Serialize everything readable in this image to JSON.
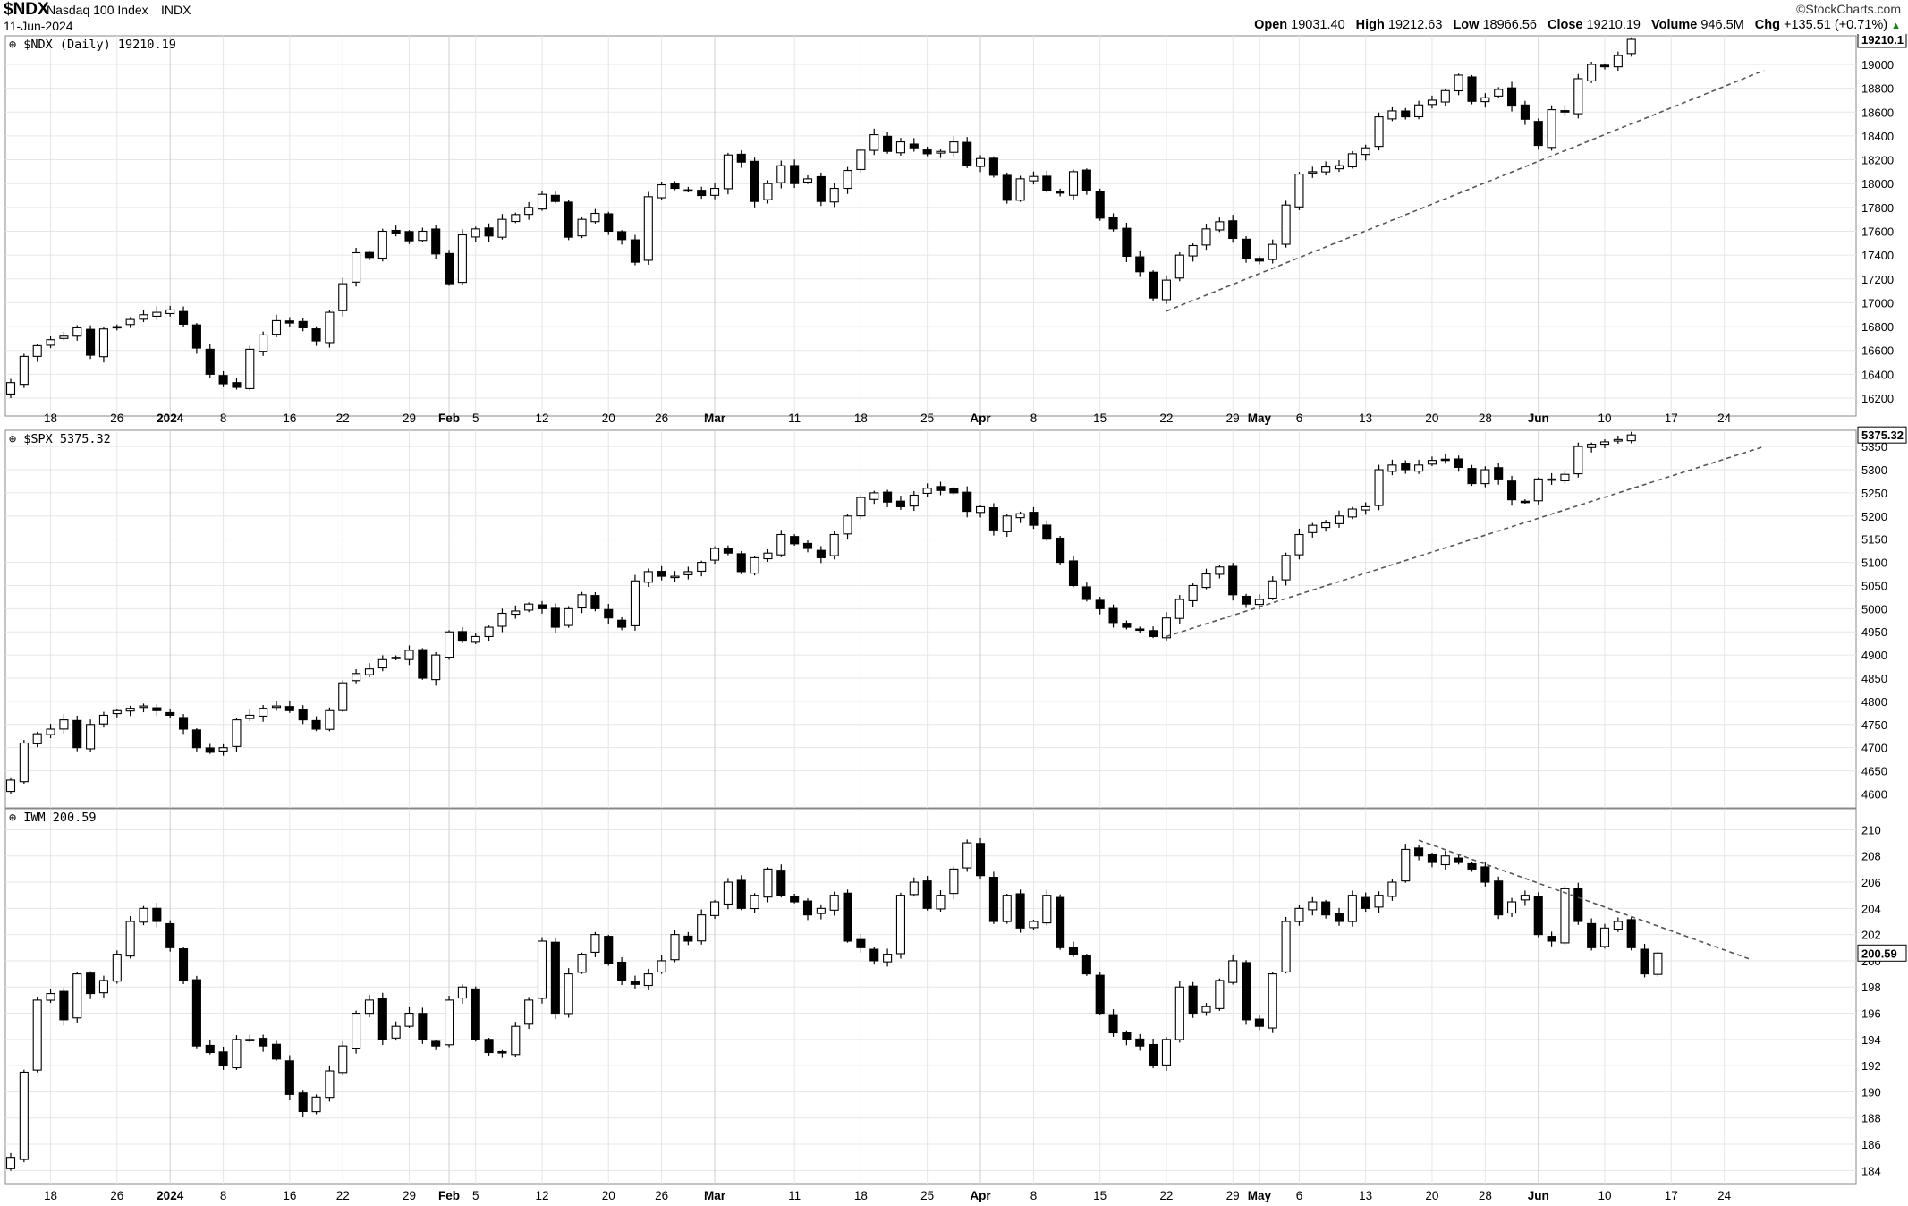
{
  "header": {
    "symbol": "$NDX",
    "name": "Nasdaq 100 Index",
    "exchange": "INDX",
    "date": "11-Jun-2024",
    "brand": "©StockCharts.com",
    "open_label": "Open",
    "open": "19031.40",
    "high_label": "High",
    "high": "19212.63",
    "low_label": "Low",
    "low": "18966.56",
    "close_label": "Close",
    "close": "19210.19",
    "volume_label": "Volume",
    "volume": "946.5M",
    "chg_label": "Chg",
    "chg": "+135.51 (+0.71%)",
    "chg_arrow": "▲"
  },
  "x_axis": {
    "labels": [
      {
        "d": 3,
        "t": "18"
      },
      {
        "d": 8,
        "t": "26"
      },
      {
        "d": 12,
        "t": "2024",
        "bold": true
      },
      {
        "d": 16,
        "t": "8"
      },
      {
        "d": 21,
        "t": "16"
      },
      {
        "d": 25,
        "t": "22"
      },
      {
        "d": 30,
        "t": "29"
      },
      {
        "d": 33,
        "t": "Feb",
        "bold": true
      },
      {
        "d": 35,
        "t": "5"
      },
      {
        "d": 40,
        "t": "12"
      },
      {
        "d": 45,
        "t": "20"
      },
      {
        "d": 49,
        "t": "26"
      },
      {
        "d": 53,
        "t": "Mar",
        "bold": true
      },
      {
        "d": 59,
        "t": "11"
      },
      {
        "d": 64,
        "t": "18"
      },
      {
        "d": 69,
        "t": "25"
      },
      {
        "d": 73,
        "t": "Apr",
        "bold": true
      },
      {
        "d": 77,
        "t": "8"
      },
      {
        "d": 82,
        "t": "15"
      },
      {
        "d": 87,
        "t": "22"
      },
      {
        "d": 92,
        "t": "29"
      },
      {
        "d": 94,
        "t": "May",
        "bold": true
      },
      {
        "d": 97,
        "t": "6"
      },
      {
        "d": 102,
        "t": "13"
      },
      {
        "d": 107,
        "t": "20"
      },
      {
        "d": 111,
        "t": "28"
      },
      {
        "d": 115,
        "t": "Jun",
        "bold": true
      },
      {
        "d": 120,
        "t": "10"
      },
      {
        "d": 125,
        "t": "17"
      },
      {
        "d": 129,
        "t": "24"
      }
    ]
  },
  "chart_data": [
    {
      "type": "candlestick",
      "label": "$NDX (Daily) 19210.19",
      "last_value": "19210.1",
      "y_ticks": [
        16200,
        16400,
        16600,
        16800,
        17000,
        17200,
        17400,
        17600,
        17800,
        18000,
        18200,
        18400,
        18600,
        18800,
        19000
      ],
      "ylim": [
        16050,
        19240
      ],
      "trendline": {
        "from": [
          87,
          16930
        ],
        "to": [
          132,
          18950
        ]
      },
      "closes": [
        16330,
        16550,
        16640,
        16690,
        16720,
        16790,
        16560,
        16780,
        16800,
        16860,
        16900,
        16920,
        16940,
        16820,
        16620,
        16400,
        16320,
        16290,
        16610,
        16730,
        16850,
        16830,
        16790,
        16680,
        16920,
        17160,
        17420,
        17380,
        17600,
        17580,
        17520,
        17600,
        17410,
        17160,
        17570,
        17620,
        17560,
        17700,
        17740,
        17800,
        17910,
        17850,
        17550,
        17700,
        17750,
        17600,
        17530,
        17340,
        17890,
        17990,
        17960,
        17940,
        17900,
        17960,
        18240,
        18180,
        17850,
        18000,
        18150,
        18000,
        18040,
        17850,
        17960,
        18110,
        18280,
        18410,
        18270,
        18350,
        18300,
        18250,
        18270,
        18350,
        18150,
        18210,
        18070,
        17860,
        18040,
        18060,
        17940,
        17920,
        18100,
        17940,
        17710,
        17620,
        17390,
        17260,
        17040,
        17190,
        17400,
        17480,
        17620,
        17680,
        17540,
        17370,
        17350,
        17490,
        17820,
        18080,
        18100,
        18140,
        18150,
        18250,
        18300,
        18560,
        18610,
        18560,
        18660,
        18700,
        18780,
        18910,
        18690,
        18720,
        18790,
        18650,
        18540,
        18320,
        18620,
        18600,
        18880,
        19000,
        18980,
        19074,
        19210
      ]
    },
    {
      "type": "candlestick",
      "label": "$SPX 5375.32",
      "last_value": "5375.32",
      "y_ticks": [
        4600,
        4650,
        4700,
        4750,
        4800,
        4850,
        4900,
        4950,
        5000,
        5050,
        5100,
        5150,
        5200,
        5250,
        5300,
        5350
      ],
      "ylim": [
        4570,
        5385
      ],
      "trendline": {
        "from": [
          87,
          4940
        ],
        "to": [
          132,
          5350
        ]
      },
      "closes": [
        4630,
        4710,
        4730,
        4740,
        4760,
        4700,
        4750,
        4770,
        4780,
        4785,
        4790,
        4780,
        4770,
        4740,
        4700,
        4690,
        4700,
        4760,
        4770,
        4785,
        4790,
        4780,
        4760,
        4740,
        4780,
        4840,
        4860,
        4870,
        4890,
        4895,
        4910,
        4850,
        4900,
        4950,
        4930,
        4940,
        4960,
        4990,
        4995,
        5010,
        5000,
        4960,
        5000,
        5030,
        5000,
        4980,
        4960,
        5060,
        5080,
        5070,
        5070,
        5080,
        5100,
        5130,
        5120,
        5080,
        5110,
        5120,
        5160,
        5140,
        5130,
        5110,
        5160,
        5200,
        5240,
        5250,
        5230,
        5220,
        5245,
        5260,
        5255,
        5250,
        5210,
        5220,
        5170,
        5200,
        5205,
        5180,
        5150,
        5100,
        5050,
        5020,
        5000,
        4970,
        4960,
        4955,
        4940,
        4980,
        5020,
        5050,
        5075,
        5090,
        5030,
        5010,
        5020,
        5060,
        5115,
        5160,
        5180,
        5185,
        5200,
        5215,
        5220,
        5300,
        5310,
        5300,
        5310,
        5320,
        5320,
        5305,
        5270,
        5300,
        5280,
        5235,
        5230,
        5280,
        5280,
        5290,
        5350,
        5355,
        5360,
        5365,
        5375
      ]
    },
    {
      "type": "candlestick",
      "label": "IWM 200.59",
      "last_value": "200.59",
      "y_ticks": [
        184,
        186,
        188,
        190,
        192,
        194,
        196,
        198,
        200,
        202,
        204,
        206,
        208,
        210
      ],
      "ylim": [
        183.0,
        211.6
      ],
      "trendline": {
        "from": [
          106,
          209.2
        ],
        "to": [
          131,
          200.1
        ]
      },
      "closes": [
        185,
        191.5,
        197,
        197.5,
        195.5,
        199,
        197.5,
        198.5,
        200.5,
        203,
        204,
        203,
        201,
        198.5,
        193.5,
        193,
        192,
        194,
        194,
        193.5,
        192.5,
        189.8,
        188.5,
        189.6,
        191.6,
        193.5,
        196,
        197,
        194,
        195,
        196,
        194,
        193.5,
        197,
        198,
        194,
        193,
        193,
        195,
        197,
        201.5,
        196,
        199,
        200.5,
        202,
        199.8,
        198.5,
        198.2,
        199,
        200,
        202,
        201.5,
        203.5,
        204.5,
        206,
        204,
        205,
        207,
        205,
        204.5,
        203.5,
        204,
        205,
        201.5,
        201,
        200,
        200.5,
        205,
        206,
        204,
        205,
        207,
        209,
        206.5,
        203,
        205,
        202.5,
        203,
        205,
        201,
        200.5,
        199,
        196,
        194.5,
        194,
        193.5,
        192,
        194,
        198,
        196,
        196.5,
        198.5,
        200,
        195.5,
        195,
        199,
        203,
        204,
        204.5,
        203.5,
        203,
        205,
        204,
        205,
        206,
        208.5,
        208,
        207.5,
        208,
        207.5,
        207,
        206,
        203.5,
        204.5,
        205,
        202,
        201.5,
        205.5,
        203,
        201,
        202.5,
        203,
        201,
        199,
        200.59
      ]
    }
  ]
}
